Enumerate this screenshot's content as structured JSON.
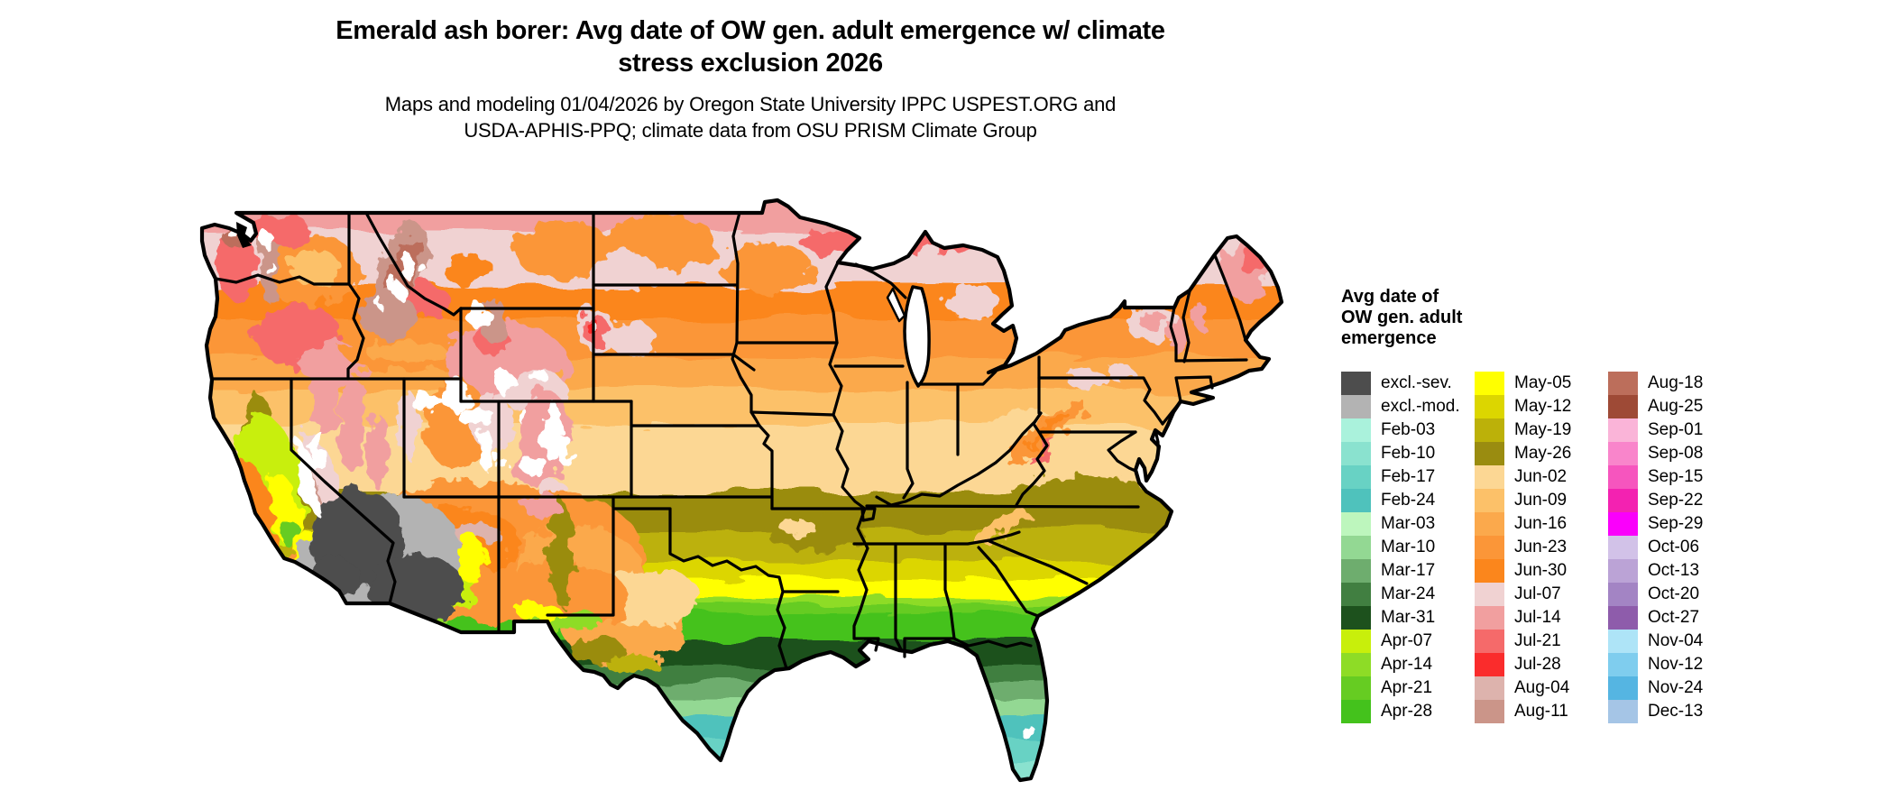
{
  "header": {
    "title_line1": "Emerald ash borer: Avg date of OW gen. adult emergence w/ climate",
    "title_line2": "stress exclusion 2026",
    "subtitle_line1": "Maps and modeling 01/04/2026 by Oregon State University IPPC USPEST.ORG and",
    "subtitle_line2": "USDA-APHIS-PPQ; climate data from OSU PRISM Climate Group"
  },
  "legend": {
    "title_lines": [
      "Avg date of",
      "OW gen. adult",
      "emergence"
    ],
    "columns": [
      [
        {
          "key": "excl_sev",
          "label": "excl.-sev.",
          "color": "#4d4d4d"
        },
        {
          "key": "excl_mod",
          "label": "excl.-mod.",
          "color": "#b3b3b3"
        },
        {
          "key": "feb03",
          "label": "Feb-03",
          "color": "#aaf2dc"
        },
        {
          "key": "feb10",
          "label": "Feb-10",
          "color": "#8ae2cf"
        },
        {
          "key": "feb17",
          "label": "Feb-17",
          "color": "#68d2c4"
        },
        {
          "key": "feb24",
          "label": "Feb-24",
          "color": "#4fc2bc"
        },
        {
          "key": "mar03",
          "label": "Mar-03",
          "color": "#bdf6bd"
        },
        {
          "key": "mar10",
          "label": "Mar-10",
          "color": "#93d893"
        },
        {
          "key": "mar17",
          "label": "Mar-17",
          "color": "#6ead6e"
        },
        {
          "key": "mar24",
          "label": "Mar-24",
          "color": "#417f41"
        },
        {
          "key": "mar31",
          "label": "Mar-31",
          "color": "#1d511d"
        },
        {
          "key": "apr07",
          "label": "Apr-07",
          "color": "#c8ef0b"
        },
        {
          "key": "apr14",
          "label": "Apr-14",
          "color": "#8edc26"
        },
        {
          "key": "apr21",
          "label": "Apr-21",
          "color": "#66cc22"
        },
        {
          "key": "apr28",
          "label": "Apr-28",
          "color": "#44c21c"
        }
      ],
      [
        {
          "key": "may05",
          "label": "May-05",
          "color": "#ffff00"
        },
        {
          "key": "may12",
          "label": "May-12",
          "color": "#dcd600"
        },
        {
          "key": "may19",
          "label": "May-19",
          "color": "#bcb109"
        },
        {
          "key": "may26",
          "label": "May-26",
          "color": "#9a8c10"
        },
        {
          "key": "jun02",
          "label": "Jun-02",
          "color": "#fcd794"
        },
        {
          "key": "jun09",
          "label": "Jun-09",
          "color": "#fcc169"
        },
        {
          "key": "jun16",
          "label": "Jun-16",
          "color": "#fba94c"
        },
        {
          "key": "jun23",
          "label": "Jun-23",
          "color": "#fb9638"
        },
        {
          "key": "jun30",
          "label": "Jun-30",
          "color": "#fb861c"
        },
        {
          "key": "jul07",
          "label": "Jul-07",
          "color": "#f0d2d2"
        },
        {
          "key": "jul14",
          "label": "Jul-14",
          "color": "#f19f9f"
        },
        {
          "key": "jul21",
          "label": "Jul-21",
          "color": "#f56a6a"
        },
        {
          "key": "jul28",
          "label": "Jul-28",
          "color": "#fa2c2c"
        },
        {
          "key": "aug04",
          "label": "Aug-04",
          "color": "#ddb3ad"
        },
        {
          "key": "aug11",
          "label": "Aug-11",
          "color": "#cb9589"
        }
      ],
      [
        {
          "key": "aug18",
          "label": "Aug-18",
          "color": "#bc6e5b"
        },
        {
          "key": "aug25",
          "label": "Aug-25",
          "color": "#9e4a36"
        },
        {
          "key": "sep01",
          "label": "Sep-01",
          "color": "#fab4d8"
        },
        {
          "key": "sep08",
          "label": "Sep-08",
          "color": "#f985cb"
        },
        {
          "key": "sep15",
          "label": "Sep-15",
          "color": "#f655be"
        },
        {
          "key": "sep22",
          "label": "Sep-22",
          "color": "#f322b1"
        },
        {
          "key": "sep29",
          "label": "Sep-29",
          "color": "#fa00fb"
        },
        {
          "key": "oct06",
          "label": "Oct-06",
          "color": "#d2c2e8"
        },
        {
          "key": "oct13",
          "label": "Oct-13",
          "color": "#bba3d6"
        },
        {
          "key": "oct20",
          "label": "Oct-20",
          "color": "#a384c4"
        },
        {
          "key": "oct27",
          "label": "Oct-27",
          "color": "#8e5cab"
        },
        {
          "key": "nov04",
          "label": "Nov-04",
          "color": "#aee4f7"
        },
        {
          "key": "nov12",
          "label": "Nov-12",
          "color": "#7fcdee"
        },
        {
          "key": "nov24",
          "label": "Nov-24",
          "color": "#55b5e2"
        },
        {
          "key": "dec13",
          "label": "Dec-13",
          "color": "#a5c5e6"
        }
      ]
    ]
  }
}
